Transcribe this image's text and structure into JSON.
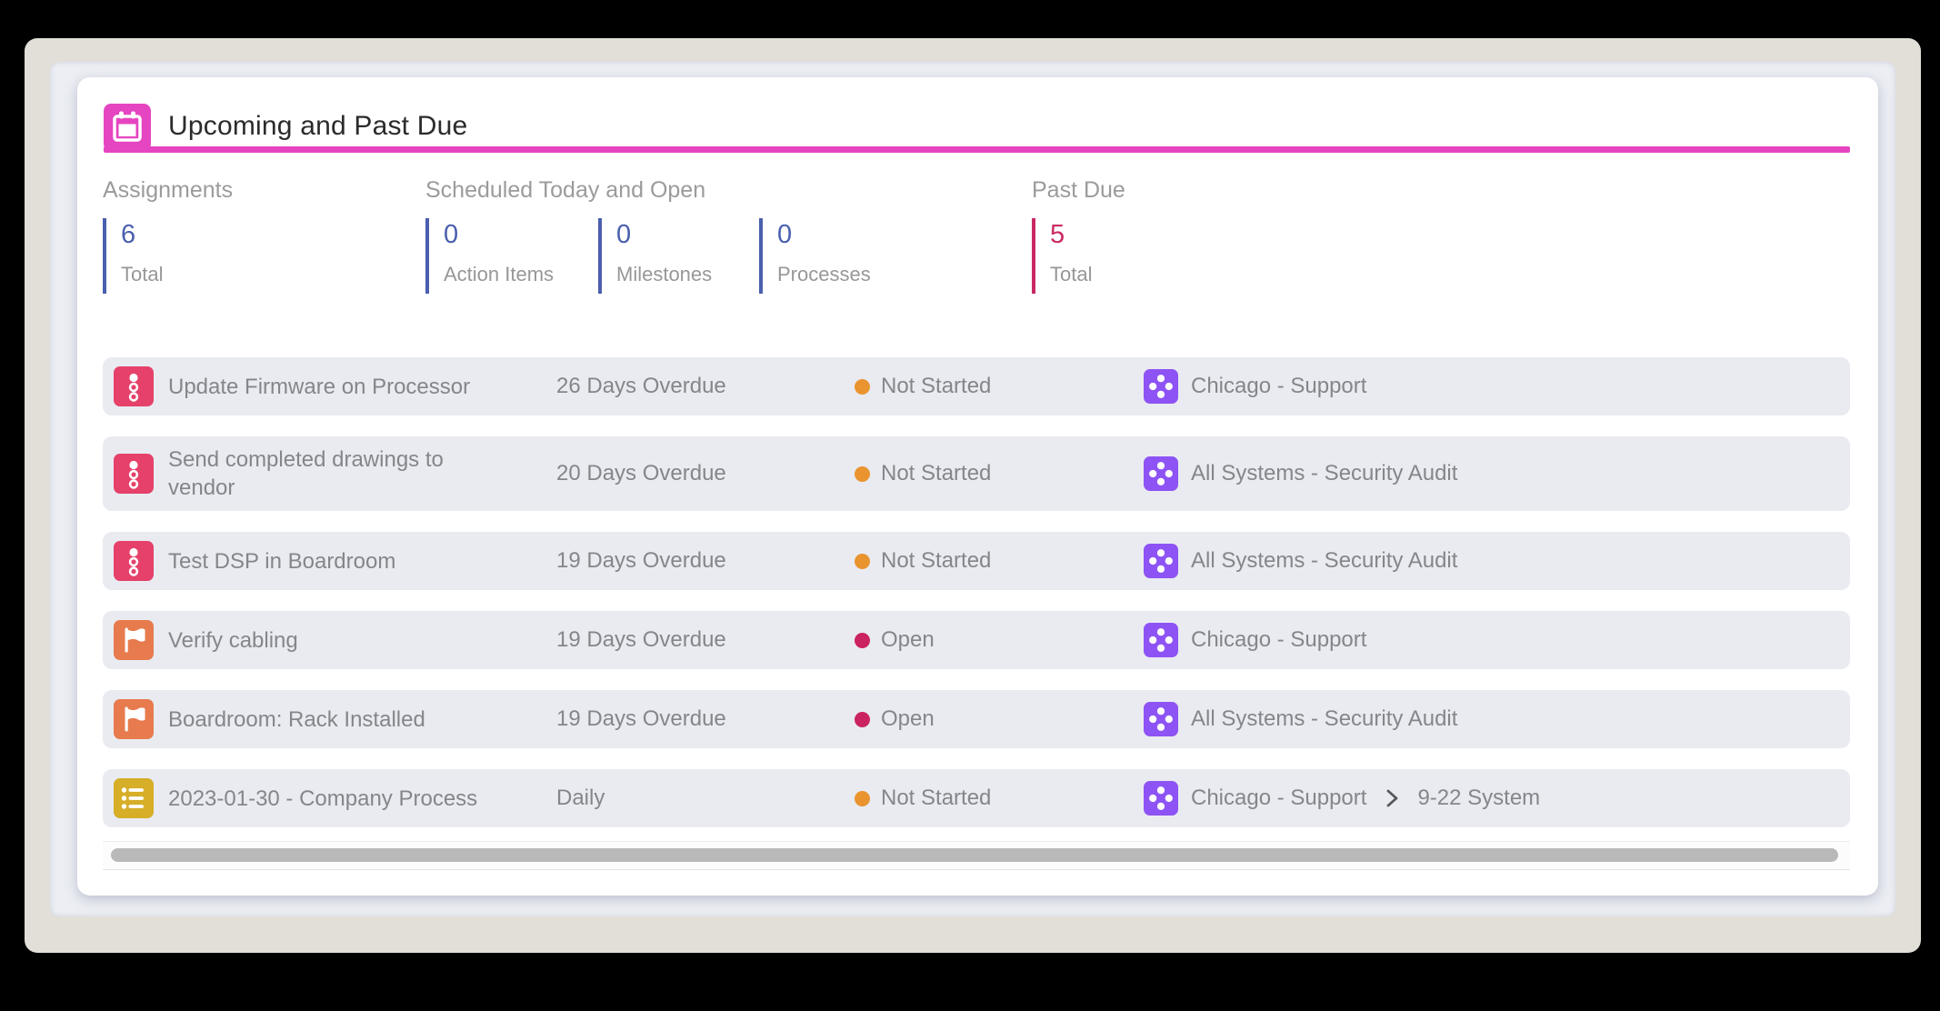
{
  "header": {
    "title": "Upcoming and Past Due"
  },
  "stats": {
    "groups": [
      {
        "label": "Assignments",
        "accent": "#4a5fae",
        "items": [
          {
            "value": "6",
            "caption": "Total"
          }
        ]
      },
      {
        "label": "Scheduled Today and Open",
        "accent": "#4a5fae",
        "items": [
          {
            "value": "0",
            "caption": "Action Items"
          },
          {
            "value": "0",
            "caption": "Milestones"
          },
          {
            "value": "0",
            "caption": "Processes"
          }
        ]
      },
      {
        "label": "Past Due",
        "accent": "#c92a63",
        "items": [
          {
            "value": "5",
            "caption": "Total"
          }
        ]
      }
    ]
  },
  "rows": [
    {
      "icon": "action-item",
      "title": "Update Firmware on Processor",
      "due": "26 Days Overdue",
      "status": "Not Started",
      "location": "Chicago - Support"
    },
    {
      "icon": "action-item",
      "title": "Send completed drawings to vendor",
      "due": "20 Days Overdue",
      "status": "Not Started",
      "location": "All Systems - Security Audit"
    },
    {
      "icon": "action-item",
      "title": "Test DSP in Boardroom",
      "due": "19 Days Overdue",
      "status": "Not Started",
      "location": "All Systems - Security Audit"
    },
    {
      "icon": "milestone",
      "title": "Verify cabling",
      "due": "19 Days Overdue",
      "status": "Open",
      "location": "Chicago - Support"
    },
    {
      "icon": "milestone",
      "title": "Boardroom: Rack Installed",
      "due": "19 Days Overdue",
      "status": "Open",
      "location": "All Systems - Security Audit"
    },
    {
      "icon": "process",
      "title": "2023-01-30 - Company Process",
      "due": "Daily",
      "status": "Not Started",
      "location": "Chicago - Support",
      "sublocation": "9-22 System"
    }
  ],
  "colors": {
    "accent": "#e645c1",
    "stat_blue": "#4a5fae",
    "stat_crimson": "#c92a63",
    "icon_action_item": "#e5416a",
    "icon_milestone": "#e77b4d",
    "icon_process": "#d6ae27",
    "icon_system": "#8e53f4",
    "status_not_started": "#e9942f",
    "status_open": "#cb2360",
    "row_background": "#e9ebf1"
  }
}
